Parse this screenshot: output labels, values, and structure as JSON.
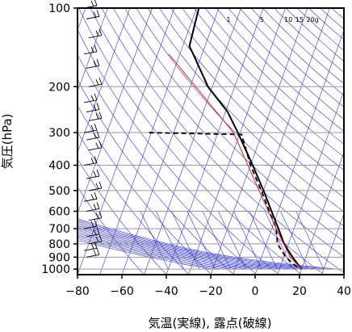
{
  "chart_data": {
    "type": "line",
    "subtype": "skew-t",
    "xlabel": "気温(実線), 露点(破線)",
    "ylabel": "気圧(hPa)",
    "xlim": [
      -80,
      40
    ],
    "ylim": [
      1050,
      100
    ],
    "y_scale": "log",
    "x_ticks": [
      "−80",
      "−60",
      "−40",
      "−20",
      "0",
      "20",
      "40"
    ],
    "y_ticks": [
      {
        "p": 100,
        "label": "100"
      },
      {
        "p": 200,
        "label": "200"
      },
      {
        "p": 300,
        "label": "300"
      },
      {
        "p": 400,
        "label": "400"
      },
      {
        "p": 500,
        "label": "500"
      },
      {
        "p": 600,
        "label": "600"
      },
      {
        "p": 700,
        "label": "700"
      },
      {
        "p": 800,
        "label": "800"
      },
      {
        "p": 900,
        "label": "900"
      },
      {
        "p": 1000,
        "label": "1000"
      }
    ],
    "mixing_ratio_labels": [
      "1",
      "5",
      "10",
      "15",
      "20g"
    ],
    "colors": {
      "grid": "#9696aa",
      "guide": "#3333cc",
      "parcel": "#dd2222",
      "profile": "#000000"
    },
    "series": [
      {
        "style": "solid",
        "points": [
          {
            "p": 100,
            "t": -69
          },
          {
            "p": 140,
            "t": -67
          },
          {
            "p": 150,
            "t": -64
          },
          {
            "p": 200,
            "t": -52
          },
          {
            "p": 250,
            "t": -39
          },
          {
            "p": 300,
            "t": -31
          },
          {
            "p": 400,
            "t": -19
          },
          {
            "p": 500,
            "t": -10
          },
          {
            "p": 600,
            "t": -3
          },
          {
            "p": 700,
            "t": 3
          },
          {
            "p": 800,
            "t": 8
          },
          {
            "p": 900,
            "t": 14
          },
          {
            "p": 1000,
            "t": 20
          }
        ]
      },
      {
        "style": "dashed",
        "points": [
          {
            "p": 300,
            "t": -71
          },
          {
            "p": 305,
            "t": -29
          },
          {
            "p": 400,
            "t": -20
          },
          {
            "p": 500,
            "t": -11
          },
          {
            "p": 600,
            "t": -4
          },
          {
            "p": 700,
            "t": 2
          },
          {
            "p": 800,
            "t": 5
          },
          {
            "p": 900,
            "t": 11
          },
          {
            "p": 1000,
            "t": 19
          }
        ]
      },
      {
        "style": "red",
        "points": [
          {
            "p": 150,
            "t": -75
          },
          {
            "p": 300,
            "t": -33
          },
          {
            "p": 500,
            "t": -12
          },
          {
            "p": 700,
            "t": 2
          },
          {
            "p": 900,
            "t": 13
          },
          {
            "p": 1000,
            "t": 20
          }
        ]
      }
    ],
    "wind_barbs": [
      {
        "p": 100
      },
      {
        "p": 110
      },
      {
        "p": 130
      },
      {
        "p": 150
      },
      {
        "p": 170
      },
      {
        "p": 200
      },
      {
        "p": 230
      },
      {
        "p": 250
      },
      {
        "p": 270
      },
      {
        "p": 300
      },
      {
        "p": 320
      },
      {
        "p": 350
      },
      {
        "p": 400
      },
      {
        "p": 450
      },
      {
        "p": 500
      },
      {
        "p": 550
      },
      {
        "p": 600
      },
      {
        "p": 650
      },
      {
        "p": 700
      },
      {
        "p": 750
      },
      {
        "p": 800
      },
      {
        "p": 850
      },
      {
        "p": 900
      }
    ]
  }
}
